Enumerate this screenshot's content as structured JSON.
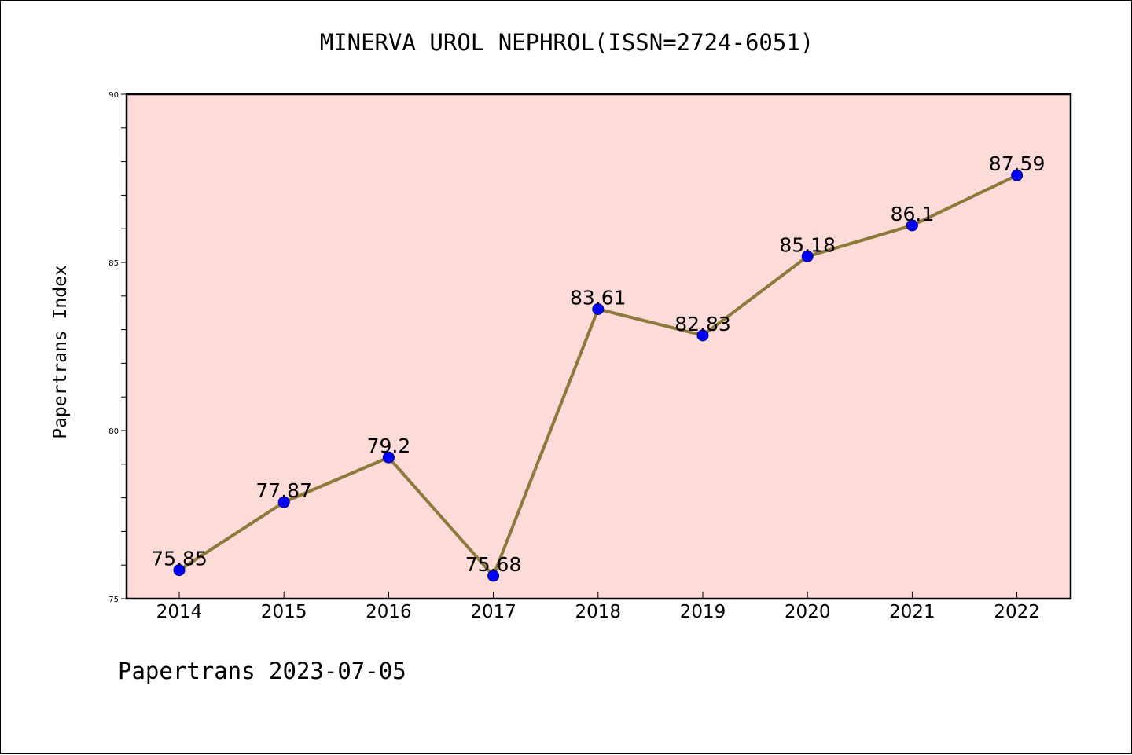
{
  "chart_data": {
    "type": "line",
    "title": "MINERVA UROL NEPHROL(ISSN=2724-6051)",
    "xlabel": "",
    "ylabel": "Papertrans Index",
    "x": [
      "2014",
      "2015",
      "2016",
      "2017",
      "2018",
      "2019",
      "2020",
      "2021",
      "2022"
    ],
    "series": [
      {
        "values": [
          75.85,
          77.87,
          79.2,
          75.68,
          83.61,
          82.83,
          85.18,
          86.1,
          87.59
        ],
        "data_labels": [
          "75.85",
          "77.87",
          "79.2",
          "75.68",
          "83.61",
          "82.83",
          "85.18",
          "86.1",
          "87.59"
        ]
      }
    ],
    "ylim": [
      75,
      90
    ],
    "yticks": [
      "75",
      "80",
      "85",
      "90"
    ],
    "grid": false,
    "legend": "none",
    "colors": {
      "plot_background": "#fddbd8",
      "line": "#8c7a3a",
      "marker": "#0000ff"
    },
    "footer": "Papertrans 2023-07-05"
  }
}
